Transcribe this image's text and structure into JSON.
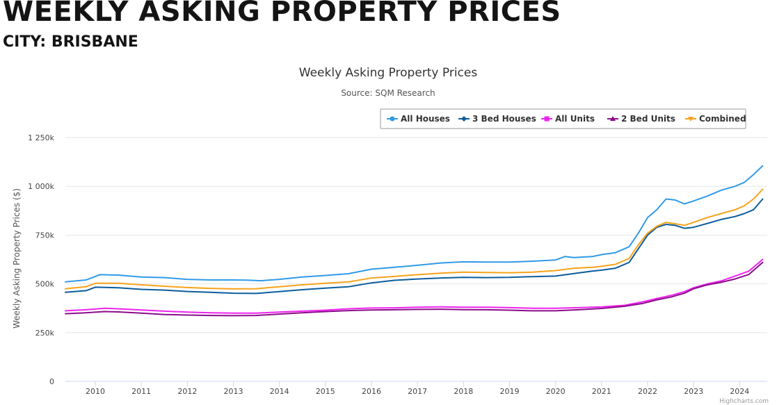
{
  "page": {
    "heading": "WEEKLY ASKING PROPERTY PRICES",
    "subheading": "CITY: BRISBANE"
  },
  "chart_data": {
    "type": "line",
    "title": "Weekly Asking Property Prices",
    "subtitle": "Source: SQM Research",
    "xlabel": "",
    "ylabel": "Weekly Asking Property Prices ($)",
    "xlim": [
      2009.35,
      2024.6
    ],
    "ylim": [
      0,
      1250000
    ],
    "x_ticks": [
      "2010",
      "2011",
      "2012",
      "2013",
      "2014",
      "2015",
      "2016",
      "2017",
      "2018",
      "2019",
      "2020",
      "2021",
      "2022",
      "2023",
      "2024"
    ],
    "y_ticks": [
      {
        "value": 0,
        "label": "0"
      },
      {
        "value": 250000,
        "label": "250k"
      },
      {
        "value": 500000,
        "label": "500k"
      },
      {
        "value": 750000,
        "label": "750k"
      },
      {
        "value": 1000000,
        "label": "1 000k"
      },
      {
        "value": 1250000,
        "label": "1 250k"
      }
    ],
    "grid": "horizontal",
    "legend_position": "top-right",
    "credits": "Highcharts.com",
    "series": [
      {
        "name": "All Houses",
        "color": "#2f9ae8",
        "marker": "circle",
        "points": [
          [
            2009.35,
            510000
          ],
          [
            2009.8,
            520000
          ],
          [
            2010.1,
            547000
          ],
          [
            2010.5,
            545000
          ],
          [
            2011.0,
            535000
          ],
          [
            2011.5,
            532000
          ],
          [
            2012.0,
            523000
          ],
          [
            2012.5,
            520000
          ],
          [
            2013.0,
            520000
          ],
          [
            2013.3,
            519000
          ],
          [
            2013.6,
            516000
          ],
          [
            2014.0,
            523000
          ],
          [
            2014.5,
            535000
          ],
          [
            2015.0,
            543000
          ],
          [
            2015.5,
            552000
          ],
          [
            2016.0,
            575000
          ],
          [
            2016.5,
            585000
          ],
          [
            2017.0,
            595000
          ],
          [
            2017.5,
            607000
          ],
          [
            2018.0,
            613000
          ],
          [
            2018.5,
            612000
          ],
          [
            2019.0,
            612000
          ],
          [
            2019.5,
            616000
          ],
          [
            2020.0,
            622000
          ],
          [
            2020.2,
            640000
          ],
          [
            2020.4,
            635000
          ],
          [
            2020.8,
            640000
          ],
          [
            2021.0,
            650000
          ],
          [
            2021.3,
            660000
          ],
          [
            2021.6,
            690000
          ],
          [
            2021.8,
            760000
          ],
          [
            2022.0,
            840000
          ],
          [
            2022.2,
            880000
          ],
          [
            2022.4,
            935000
          ],
          [
            2022.6,
            930000
          ],
          [
            2022.8,
            910000
          ],
          [
            2023.0,
            925000
          ],
          [
            2023.3,
            950000
          ],
          [
            2023.6,
            980000
          ],
          [
            2023.9,
            1000000
          ],
          [
            2024.1,
            1020000
          ],
          [
            2024.3,
            1060000
          ],
          [
            2024.5,
            1105000
          ]
        ]
      },
      {
        "name": "3 Bed Houses",
        "color": "#0b5c9c",
        "marker": "diamond",
        "points": [
          [
            2009.35,
            457000
          ],
          [
            2009.8,
            465000
          ],
          [
            2010.0,
            483000
          ],
          [
            2010.5,
            480000
          ],
          [
            2011.0,
            472000
          ],
          [
            2011.5,
            468000
          ],
          [
            2012.0,
            461000
          ],
          [
            2012.5,
            457000
          ],
          [
            2013.0,
            452000
          ],
          [
            2013.5,
            451000
          ],
          [
            2014.0,
            460000
          ],
          [
            2014.5,
            470000
          ],
          [
            2015.0,
            478000
          ],
          [
            2015.5,
            485000
          ],
          [
            2016.0,
            505000
          ],
          [
            2016.5,
            518000
          ],
          [
            2017.0,
            525000
          ],
          [
            2017.5,
            530000
          ],
          [
            2018.0,
            533000
          ],
          [
            2018.5,
            532000
          ],
          [
            2019.0,
            533000
          ],
          [
            2019.5,
            537000
          ],
          [
            2020.0,
            540000
          ],
          [
            2020.4,
            553000
          ],
          [
            2020.8,
            565000
          ],
          [
            2021.0,
            570000
          ],
          [
            2021.3,
            580000
          ],
          [
            2021.6,
            610000
          ],
          [
            2021.8,
            680000
          ],
          [
            2022.0,
            750000
          ],
          [
            2022.2,
            790000
          ],
          [
            2022.4,
            805000
          ],
          [
            2022.6,
            800000
          ],
          [
            2022.8,
            785000
          ],
          [
            2023.0,
            790000
          ],
          [
            2023.3,
            810000
          ],
          [
            2023.6,
            830000
          ],
          [
            2023.9,
            845000
          ],
          [
            2024.1,
            860000
          ],
          [
            2024.3,
            880000
          ],
          [
            2024.5,
            935000
          ]
        ]
      },
      {
        "name": "All Units",
        "color": "#ee22ee",
        "marker": "square",
        "points": [
          [
            2009.35,
            362000
          ],
          [
            2009.8,
            367000
          ],
          [
            2010.2,
            375000
          ],
          [
            2010.5,
            372000
          ],
          [
            2011.0,
            366000
          ],
          [
            2011.5,
            360000
          ],
          [
            2012.0,
            355000
          ],
          [
            2012.5,
            352000
          ],
          [
            2013.0,
            350000
          ],
          [
            2013.5,
            350000
          ],
          [
            2014.0,
            355000
          ],
          [
            2014.5,
            360000
          ],
          [
            2015.0,
            365000
          ],
          [
            2015.5,
            372000
          ],
          [
            2016.0,
            376000
          ],
          [
            2016.5,
            377000
          ],
          [
            2017.0,
            380000
          ],
          [
            2017.5,
            382000
          ],
          [
            2018.0,
            380000
          ],
          [
            2018.5,
            380000
          ],
          [
            2019.0,
            378000
          ],
          [
            2019.5,
            375000
          ],
          [
            2020.0,
            375000
          ],
          [
            2020.5,
            378000
          ],
          [
            2021.0,
            382000
          ],
          [
            2021.5,
            390000
          ],
          [
            2021.9,
            408000
          ],
          [
            2022.2,
            425000
          ],
          [
            2022.5,
            440000
          ],
          [
            2022.8,
            460000
          ],
          [
            2023.0,
            480000
          ],
          [
            2023.3,
            500000
          ],
          [
            2023.6,
            515000
          ],
          [
            2023.9,
            540000
          ],
          [
            2024.2,
            565000
          ],
          [
            2024.5,
            625000
          ]
        ]
      },
      {
        "name": "2 Bed Units",
        "color": "#8a0c8a",
        "marker": "triangle",
        "points": [
          [
            2009.35,
            347000
          ],
          [
            2009.8,
            352000
          ],
          [
            2010.2,
            358000
          ],
          [
            2010.5,
            356000
          ],
          [
            2011.0,
            350000
          ],
          [
            2011.5,
            343000
          ],
          [
            2012.0,
            340000
          ],
          [
            2012.5,
            338000
          ],
          [
            2013.0,
            337000
          ],
          [
            2013.5,
            338000
          ],
          [
            2014.0,
            345000
          ],
          [
            2014.5,
            352000
          ],
          [
            2015.0,
            358000
          ],
          [
            2015.5,
            363000
          ],
          [
            2016.0,
            366000
          ],
          [
            2016.5,
            367000
          ],
          [
            2017.0,
            369000
          ],
          [
            2017.5,
            370000
          ],
          [
            2018.0,
            368000
          ],
          [
            2018.5,
            367000
          ],
          [
            2019.0,
            365000
          ],
          [
            2019.5,
            362000
          ],
          [
            2020.0,
            362000
          ],
          [
            2020.5,
            367000
          ],
          [
            2021.0,
            374000
          ],
          [
            2021.5,
            385000
          ],
          [
            2021.9,
            400000
          ],
          [
            2022.2,
            418000
          ],
          [
            2022.5,
            432000
          ],
          [
            2022.8,
            452000
          ],
          [
            2023.0,
            475000
          ],
          [
            2023.3,
            495000
          ],
          [
            2023.6,
            508000
          ],
          [
            2023.9,
            525000
          ],
          [
            2024.2,
            548000
          ],
          [
            2024.5,
            610000
          ]
        ]
      },
      {
        "name": "Combined",
        "color": "#f7a21b",
        "marker": "triangle-down",
        "points": [
          [
            2009.35,
            475000
          ],
          [
            2009.8,
            485000
          ],
          [
            2010.0,
            503000
          ],
          [
            2010.5,
            503000
          ],
          [
            2011.0,
            495000
          ],
          [
            2011.5,
            488000
          ],
          [
            2012.0,
            481000
          ],
          [
            2012.5,
            477000
          ],
          [
            2013.0,
            474000
          ],
          [
            2013.5,
            475000
          ],
          [
            2014.0,
            485000
          ],
          [
            2014.5,
            495000
          ],
          [
            2015.0,
            503000
          ],
          [
            2015.5,
            510000
          ],
          [
            2016.0,
            530000
          ],
          [
            2016.5,
            538000
          ],
          [
            2017.0,
            547000
          ],
          [
            2017.5,
            555000
          ],
          [
            2018.0,
            560000
          ],
          [
            2018.5,
            558000
          ],
          [
            2019.0,
            557000
          ],
          [
            2019.5,
            560000
          ],
          [
            2020.0,
            568000
          ],
          [
            2020.4,
            580000
          ],
          [
            2020.8,
            585000
          ],
          [
            2021.0,
            590000
          ],
          [
            2021.3,
            600000
          ],
          [
            2021.6,
            630000
          ],
          [
            2021.8,
            700000
          ],
          [
            2022.0,
            760000
          ],
          [
            2022.2,
            795000
          ],
          [
            2022.4,
            815000
          ],
          [
            2022.6,
            808000
          ],
          [
            2022.8,
            800000
          ],
          [
            2023.0,
            815000
          ],
          [
            2023.3,
            840000
          ],
          [
            2023.6,
            860000
          ],
          [
            2023.9,
            880000
          ],
          [
            2024.1,
            900000
          ],
          [
            2024.3,
            935000
          ],
          [
            2024.5,
            985000
          ]
        ]
      }
    ]
  }
}
